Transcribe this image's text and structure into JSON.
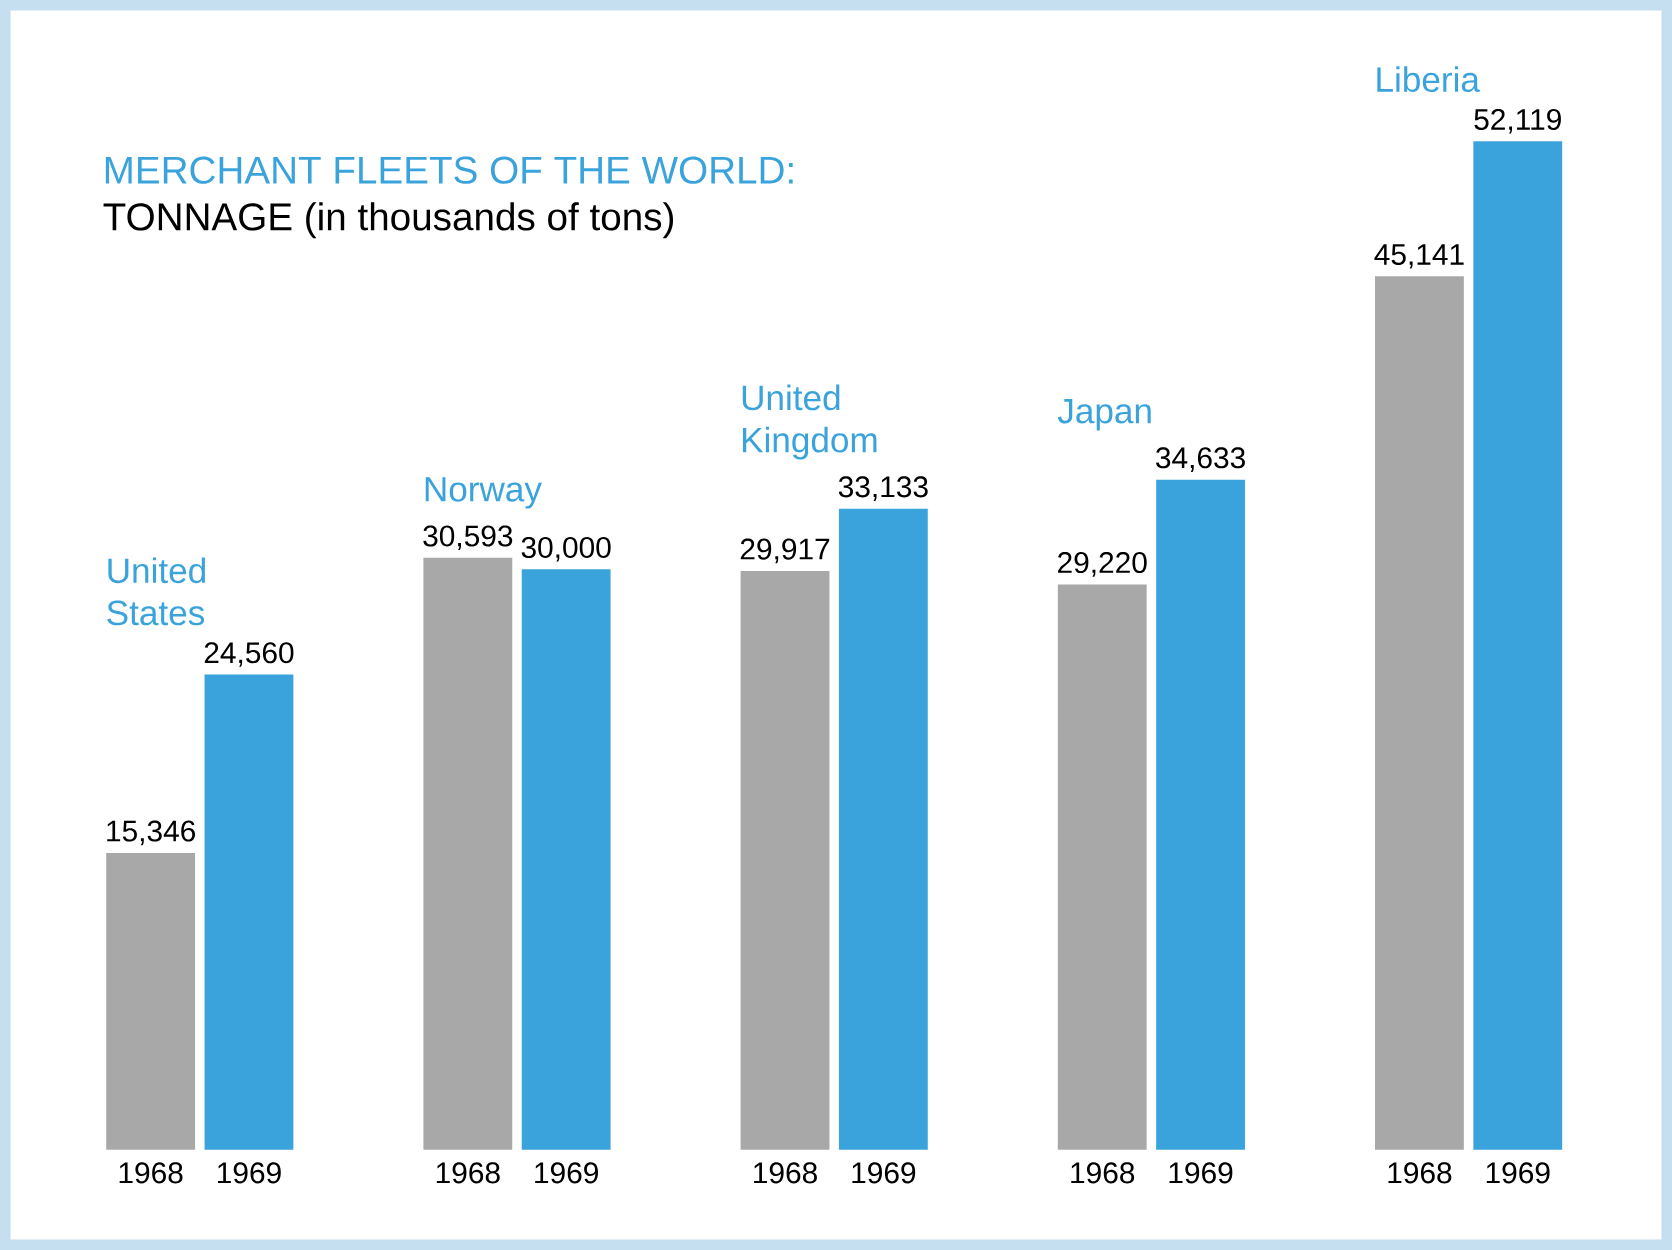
{
  "chart_data": {
    "type": "bar",
    "title": "MERCHANT FLEETS OF THE WORLD:",
    "subtitle": "TONNAGE (in thousands of tons)",
    "categories": [
      "United States",
      "Norway",
      "United Kingdom",
      "Japan",
      "Liberia"
    ],
    "series": [
      {
        "name": "1968",
        "color": "#a8a8a8",
        "values": [
          15346,
          30593,
          29917,
          29220,
          45141
        ],
        "value_labels": [
          "15,346",
          "30,593",
          "29,917",
          "29,220",
          "45,141"
        ]
      },
      {
        "name": "1969",
        "color": "#3ba3dc",
        "values": [
          24560,
          30000,
          33133,
          34633,
          52119
        ],
        "value_labels": [
          "24,560",
          "30,000",
          "33,133",
          "34,633",
          "52,119"
        ]
      }
    ],
    "stacked": false
  }
}
